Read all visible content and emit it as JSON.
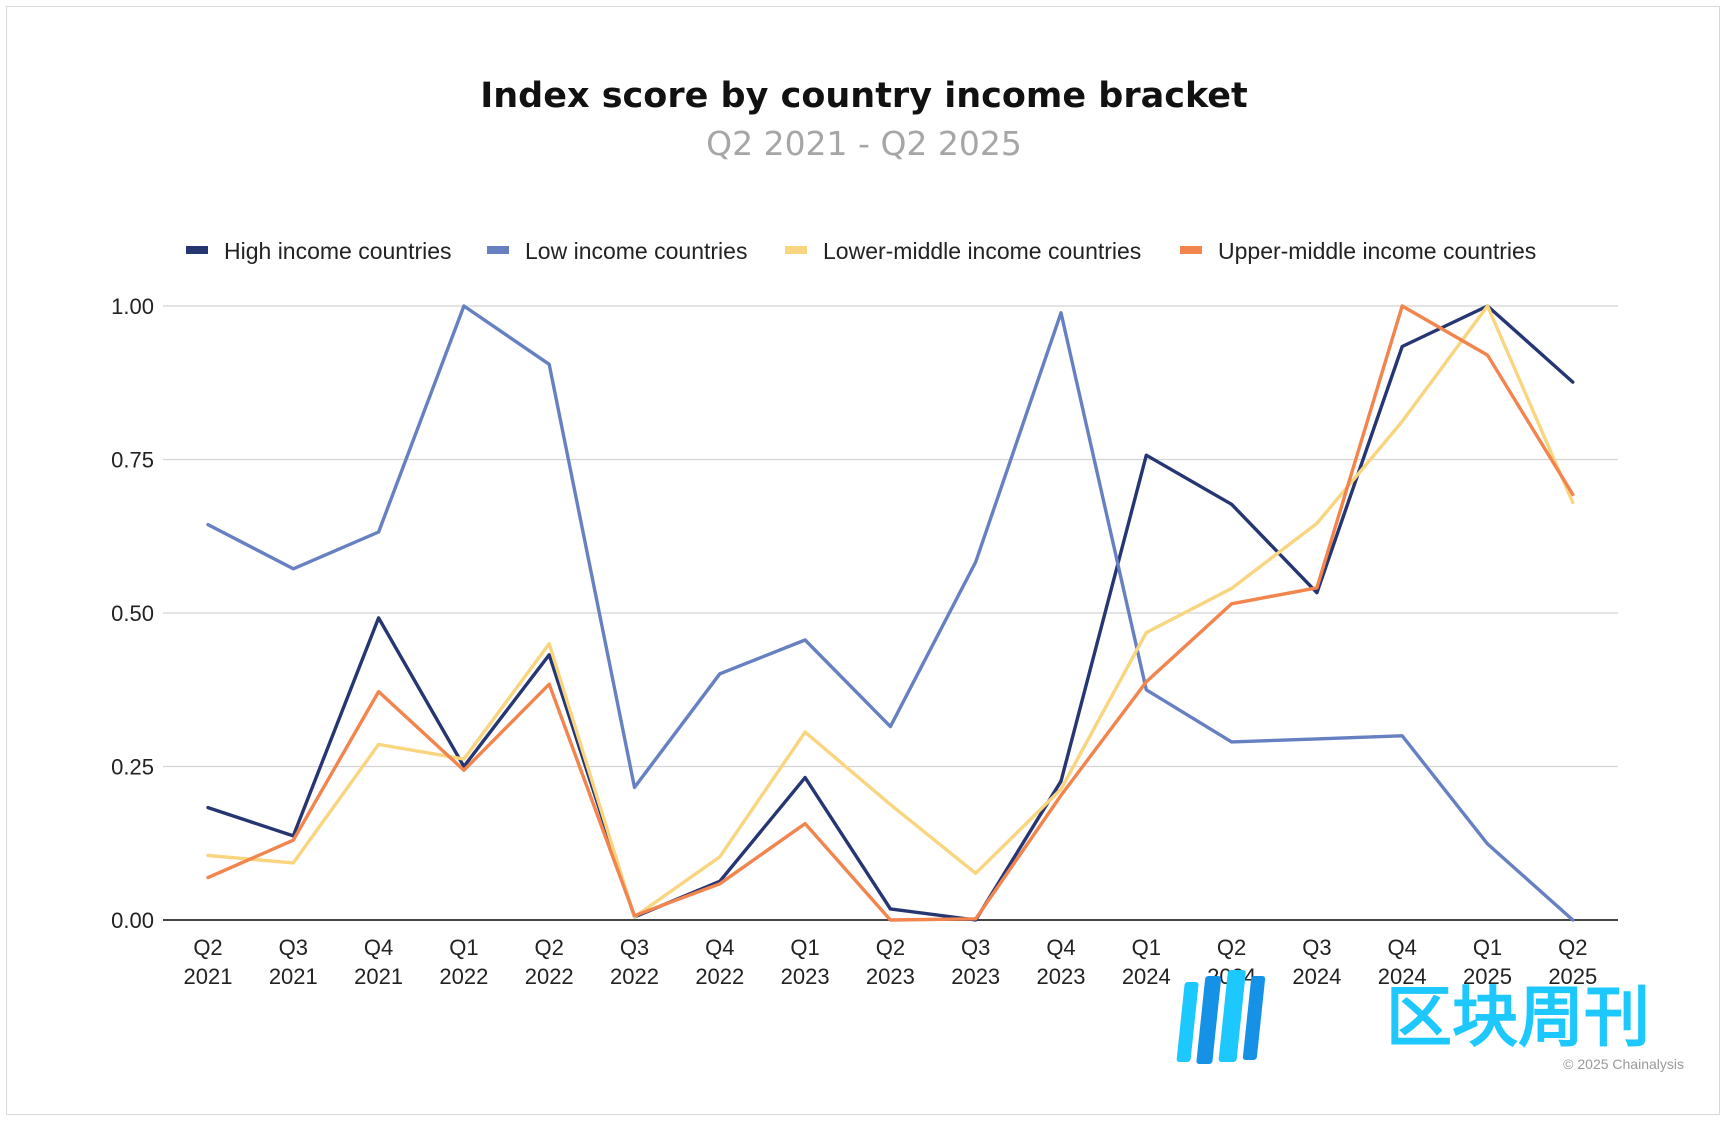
{
  "chart_data": {
    "type": "line",
    "title": "Index score by country income bracket",
    "subtitle": "Q2 2021 - Q2 2025",
    "categories": [
      [
        "Q2",
        "2021"
      ],
      [
        "Q3",
        "2021"
      ],
      [
        "Q4",
        "2021"
      ],
      [
        "Q1",
        "2022"
      ],
      [
        "Q2",
        "2022"
      ],
      [
        "Q3",
        "2022"
      ],
      [
        "Q4",
        "2022"
      ],
      [
        "Q1",
        "2023"
      ],
      [
        "Q2",
        "2023"
      ],
      [
        "Q3",
        "2023"
      ],
      [
        "Q4",
        "2023"
      ],
      [
        "Q1",
        "2024"
      ],
      [
        "Q2",
        "2024"
      ],
      [
        "Q3",
        "2024"
      ],
      [
        "Q4",
        "2024"
      ],
      [
        "Q1",
        "2025"
      ],
      [
        "Q2",
        "2025"
      ]
    ],
    "ylim": [
      0,
      1
    ],
    "yticks": [
      "0.00",
      "0.25",
      "0.50",
      "0.75",
      "1.00"
    ],
    "ytick_values": [
      0,
      0.25,
      0.5,
      0.75,
      1.0
    ],
    "grid": true,
    "legend_position": "top",
    "series": [
      {
        "name": "High income countries",
        "color": "#263673",
        "values": [
          0.183,
          0.137,
          0.492,
          0.25,
          0.432,
          0.005,
          0.063,
          0.232,
          0.018,
          0.0,
          0.226,
          0.757,
          0.677,
          0.533,
          0.934,
          1.0,
          0.876
        ]
      },
      {
        "name": "Low income countries",
        "color": "#6780c2",
        "values": [
          0.644,
          0.572,
          0.632,
          1.0,
          0.905,
          0.216,
          0.401,
          0.456,
          0.315,
          0.583,
          0.989,
          0.375,
          0.29,
          0.295,
          0.3,
          0.124,
          0.0
        ]
      },
      {
        "name": "Lower-middle income countries",
        "color": "#f9d57f",
        "values": [
          0.105,
          0.093,
          0.286,
          0.262,
          0.45,
          0.005,
          0.103,
          0.306,
          0.188,
          0.076,
          0.213,
          0.468,
          0.54,
          0.646,
          0.812,
          1.0,
          0.68
        ]
      },
      {
        "name": "Upper-middle income countries",
        "color": "#f2844e",
        "values": [
          0.069,
          0.13,
          0.372,
          0.244,
          0.384,
          0.007,
          0.059,
          0.157,
          0.0,
          0.002,
          0.203,
          0.388,
          0.515,
          0.541,
          1.0,
          0.92,
          0.693
        ]
      }
    ]
  },
  "watermark": {
    "text": "区块周刊",
    "color": "#1dc8ff"
  },
  "copyright": "© 2025 Chainalysis"
}
